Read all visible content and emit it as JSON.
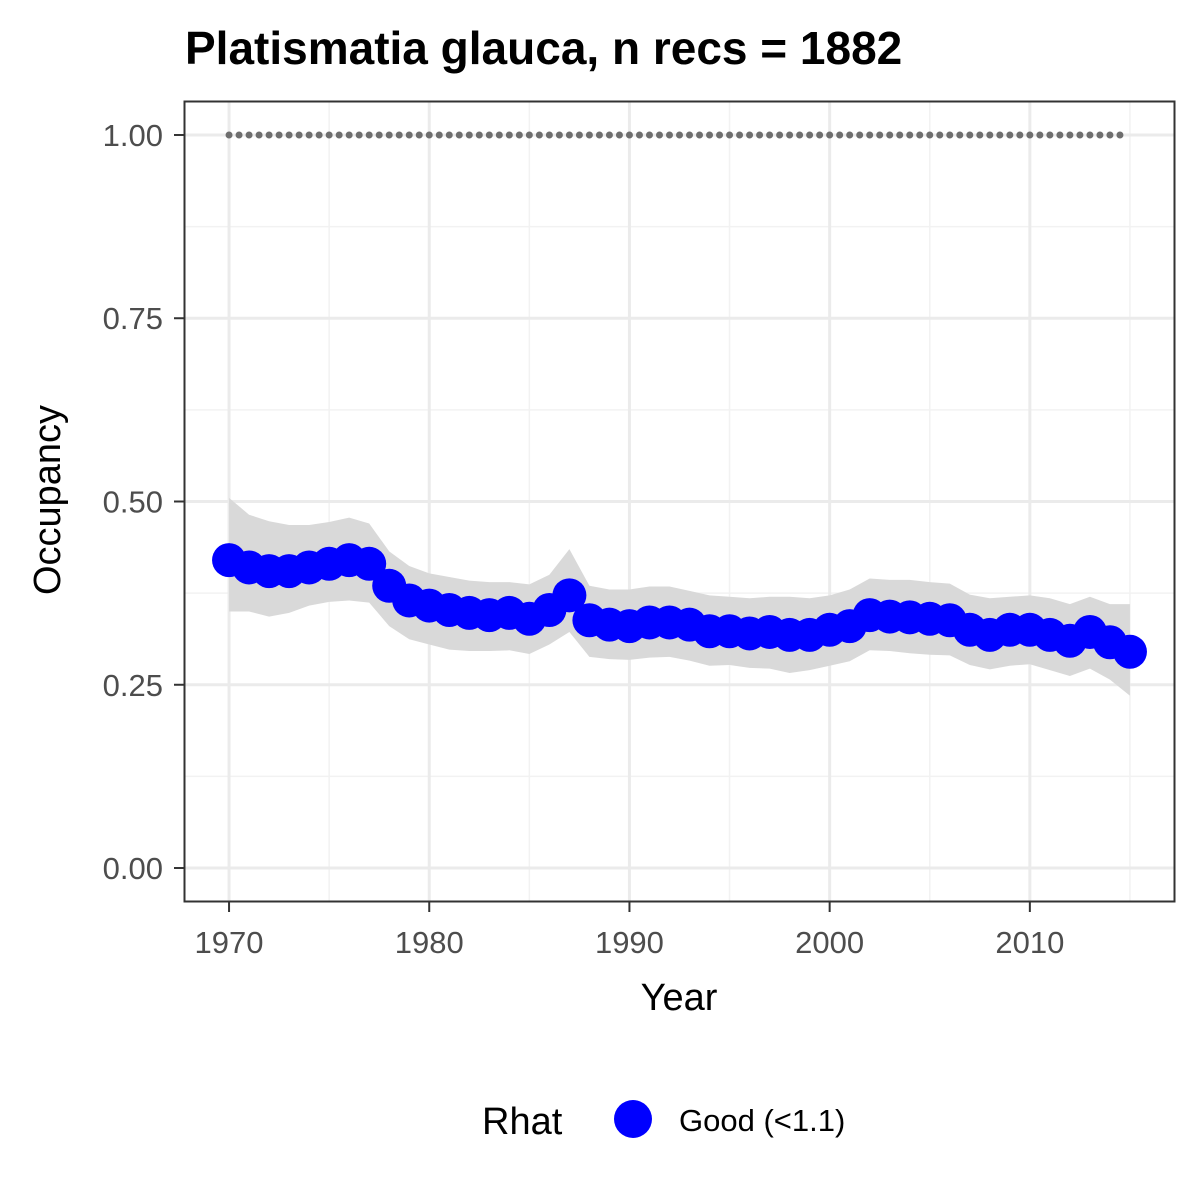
{
  "chart_data": {
    "type": "line",
    "title": "Platismatia glauca, n recs = 1882",
    "xlabel": "Year",
    "ylabel": "Occupancy",
    "xlim": [
      1967.8,
      2017.2
    ],
    "ylim": [
      -0.045,
      1.045
    ],
    "x_ticks": [
      1970,
      1980,
      1990,
      2000,
      2010
    ],
    "y_ticks": [
      0.0,
      0.25,
      0.5,
      0.75,
      1.0
    ],
    "y_tick_labels": [
      "0.00",
      "0.25",
      "0.50",
      "0.75",
      "1.00"
    ],
    "grid": true,
    "legend_position": "bottom",
    "legend": {
      "title": "Rhat",
      "entries": [
        {
          "label": "Good (<1.1)",
          "color": "#0000ff"
        }
      ]
    },
    "colors": {
      "points": "#0000ff",
      "ribbon": "#d9d9d9",
      "reference": "#6e6e6e"
    },
    "reference_line": {
      "y": 1.0,
      "style": "dotted"
    },
    "series": [
      {
        "x": [
          1970,
          1971,
          1972,
          1973,
          1974,
          1975,
          1976,
          1977,
          1978,
          1979,
          1980,
          1981,
          1982,
          1983,
          1984,
          1985,
          1986,
          1987,
          1988,
          1989,
          1990,
          1991,
          1992,
          1993,
          1994,
          1995,
          1996,
          1997,
          1998,
          1999,
          2000,
          2001,
          2002,
          2003,
          2004,
          2005,
          2006,
          2007,
          2008,
          2009,
          2010,
          2011,
          2012,
          2013,
          2014,
          2015
        ],
        "values": [
          0.42,
          0.41,
          0.405,
          0.405,
          0.41,
          0.415,
          0.42,
          0.415,
          0.385,
          0.365,
          0.358,
          0.352,
          0.348,
          0.345,
          0.348,
          0.34,
          0.352,
          0.372,
          0.338,
          0.332,
          0.33,
          0.335,
          0.335,
          0.332,
          0.323,
          0.323,
          0.32,
          0.322,
          0.318,
          0.318,
          0.325,
          0.33,
          0.345,
          0.343,
          0.342,
          0.34,
          0.338,
          0.325,
          0.318,
          0.325,
          0.325,
          0.318,
          0.31,
          0.322,
          0.308,
          0.295
        ],
        "upper": [
          0.505,
          0.482,
          0.473,
          0.468,
          0.468,
          0.472,
          0.478,
          0.47,
          0.432,
          0.412,
          0.402,
          0.397,
          0.392,
          0.39,
          0.39,
          0.387,
          0.4,
          0.435,
          0.385,
          0.38,
          0.38,
          0.384,
          0.384,
          0.378,
          0.372,
          0.37,
          0.368,
          0.37,
          0.37,
          0.368,
          0.372,
          0.38,
          0.395,
          0.393,
          0.393,
          0.39,
          0.388,
          0.373,
          0.368,
          0.37,
          0.372,
          0.368,
          0.36,
          0.37,
          0.36,
          0.36
        ],
        "lower": [
          0.35,
          0.35,
          0.343,
          0.348,
          0.358,
          0.363,
          0.365,
          0.362,
          0.33,
          0.312,
          0.305,
          0.298,
          0.296,
          0.296,
          0.297,
          0.292,
          0.305,
          0.322,
          0.288,
          0.285,
          0.284,
          0.287,
          0.288,
          0.283,
          0.276,
          0.277,
          0.273,
          0.272,
          0.266,
          0.27,
          0.276,
          0.282,
          0.297,
          0.296,
          0.293,
          0.291,
          0.29,
          0.277,
          0.271,
          0.276,
          0.278,
          0.27,
          0.262,
          0.272,
          0.257,
          0.235
        ]
      }
    ]
  }
}
